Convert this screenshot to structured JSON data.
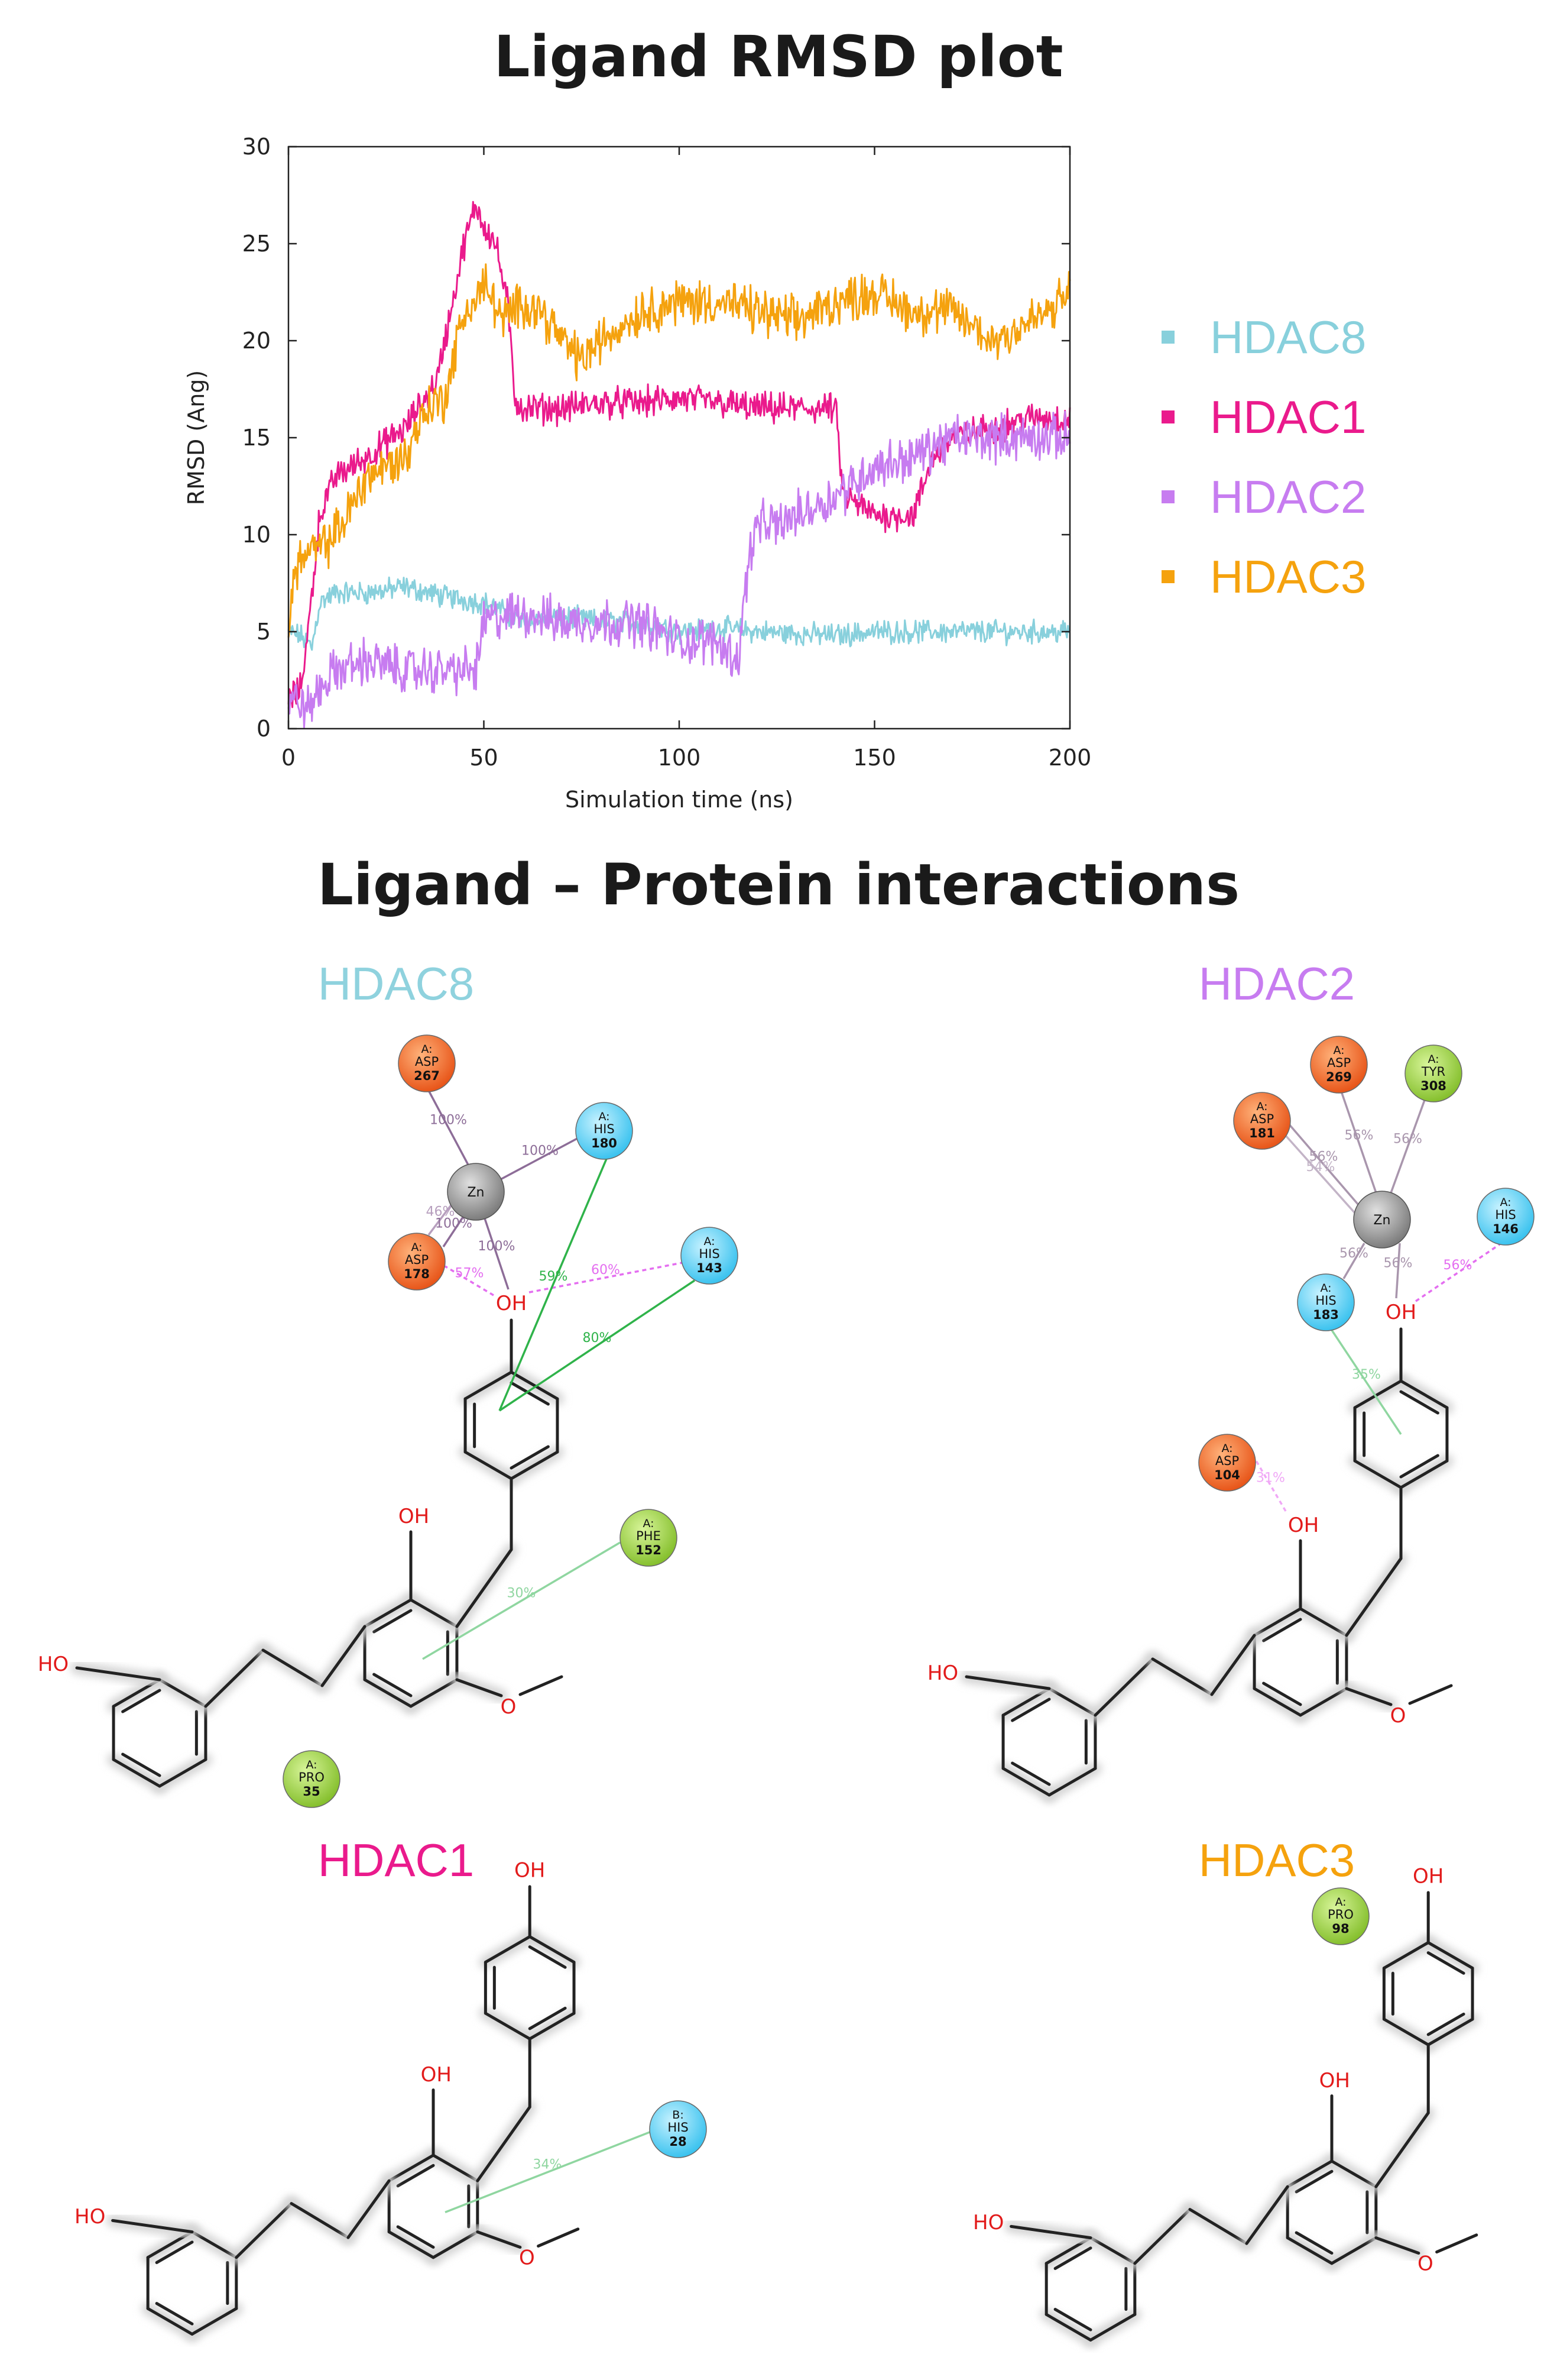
{
  "rmsd_title": "Ligand RMSD plot",
  "interactions_title": "Ligand – Protein interactions",
  "colors": {
    "HDAC8": "#88d0dc",
    "HDAC1": "#ea1a8c",
    "HDAC2": "#c77cf0",
    "HDAC3": "#f5a20e"
  },
  "chart_data": {
    "type": "line",
    "xlabel": "Simulation time (ns)",
    "ylabel": "RMSD (Ang)",
    "xlim": [
      0,
      200
    ],
    "ylim": [
      0,
      30
    ],
    "xticks": [
      0,
      50,
      100,
      150,
      200
    ],
    "yticks": [
      0,
      5,
      10,
      15,
      20,
      25,
      30
    ],
    "grid": false,
    "legend_position": "right",
    "series": [
      {
        "name": "HDAC8",
        "color": "#88d0dc",
        "x": [
          0,
          3,
          6,
          8,
          12,
          20,
          30,
          40,
          50,
          60,
          70,
          80,
          90,
          100,
          110,
          120,
          130,
          140,
          150,
          160,
          170,
          180,
          190,
          200
        ],
        "y": [
          5,
          4.8,
          4.2,
          6.5,
          7,
          7,
          7.3,
          6.8,
          6.5,
          5.5,
          5.8,
          5.5,
          5.5,
          5,
          5.2,
          5,
          4.9,
          4.8,
          5,
          5,
          5,
          5,
          5,
          5
        ]
      },
      {
        "name": "HDAC1",
        "color": "#ea1a8c",
        "x": [
          0,
          3,
          5,
          8,
          12,
          20,
          30,
          38,
          42,
          45,
          48,
          50,
          53,
          56,
          58,
          60,
          70,
          80,
          90,
          100,
          110,
          120,
          130,
          140,
          142,
          150,
          160,
          165,
          170,
          180,
          190,
          200
        ],
        "y": [
          1.5,
          2,
          5,
          11,
          13,
          14,
          15.5,
          18,
          22,
          25,
          27,
          26,
          25,
          22,
          17,
          16.5,
          16.5,
          16.8,
          16.8,
          17,
          16.8,
          16.5,
          16.5,
          16.5,
          12,
          11,
          11,
          14,
          15,
          15.5,
          16,
          16
        ]
      },
      {
        "name": "HDAC2",
        "color": "#c77cf0",
        "x": [
          0,
          3,
          5,
          8,
          12,
          20,
          30,
          40,
          48,
          50,
          60,
          70,
          80,
          90,
          100,
          110,
          115,
          118,
          120,
          125,
          130,
          140,
          150,
          160,
          170,
          180,
          190,
          200
        ],
        "y": [
          1.5,
          1.3,
          1,
          2,
          3,
          3.5,
          3,
          3,
          3,
          5.5,
          6,
          5.5,
          5.5,
          5.5,
          4.5,
          4.5,
          3.5,
          9,
          10.5,
          10.5,
          11,
          12,
          13.5,
          14,
          15,
          15,
          15,
          15
        ]
      },
      {
        "name": "HDAC3",
        "color": "#f5a20e",
        "x": [
          0,
          2,
          5,
          10,
          15,
          20,
          25,
          30,
          35,
          40,
          45,
          48,
          50,
          55,
          60,
          65,
          70,
          75,
          80,
          90,
          100,
          110,
          120,
          130,
          140,
          150,
          160,
          170,
          180,
          190,
          195,
          200
        ],
        "y": [
          5.5,
          8.5,
          9,
          9.5,
          11,
          13,
          13.5,
          14,
          16.5,
          17,
          21.5,
          22,
          23,
          21,
          22,
          21.5,
          20,
          19,
          20,
          21.5,
          22,
          22,
          21.5,
          21,
          22,
          22.5,
          21.5,
          21.5,
          20,
          21,
          21.5,
          22.5
        ]
      }
    ]
  },
  "panels": {
    "hdac8": {
      "title": "HDAC8",
      "residues": [
        {
          "chain": "A:",
          "name": "ASP",
          "num": "267"
        },
        {
          "chain": "A:",
          "name": "HIS",
          "num": "180"
        },
        {
          "chain": "A:",
          "name": "ASP",
          "num": "178"
        },
        {
          "chain": "A:",
          "name": "HIS",
          "num": "143"
        },
        {
          "chain": "A:",
          "name": "PHE",
          "num": "152"
        },
        {
          "chain": "A:",
          "name": "PRO",
          "num": "35"
        }
      ],
      "metal": "Zn",
      "percents": [
        "100%",
        "100%",
        "46%",
        "100%",
        "100%",
        "57%",
        "60%",
        "59%",
        "80%",
        "30%"
      ]
    },
    "hdac2": {
      "title": "HDAC2",
      "residues": [
        {
          "chain": "A:",
          "name": "ASP",
          "num": "269"
        },
        {
          "chain": "A:",
          "name": "TYR",
          "num": "308"
        },
        {
          "chain": "A:",
          "name": "ASP",
          "num": "181"
        },
        {
          "chain": "A:",
          "name": "HIS",
          "num": "146"
        },
        {
          "chain": "A:",
          "name": "HIS",
          "num": "183"
        },
        {
          "chain": "A:",
          "name": "ASP",
          "num": "104"
        }
      ],
      "metal": "Zn",
      "percents": [
        "56%",
        "56%",
        "56%",
        "54%",
        "56%",
        "56%",
        "56%",
        "35%",
        "31%"
      ]
    },
    "hdac1": {
      "title": "HDAC1",
      "residues": [
        {
          "chain": "B:",
          "name": "HIS",
          "num": "28"
        }
      ],
      "percents": [
        "34%"
      ]
    },
    "hdac3": {
      "title": "HDAC3",
      "residues": [
        {
          "chain": "A:",
          "name": "PRO",
          "num": "98"
        }
      ],
      "percents": []
    }
  },
  "atoms": {
    "oh": "OH",
    "ho": "HO",
    "o": "O"
  }
}
